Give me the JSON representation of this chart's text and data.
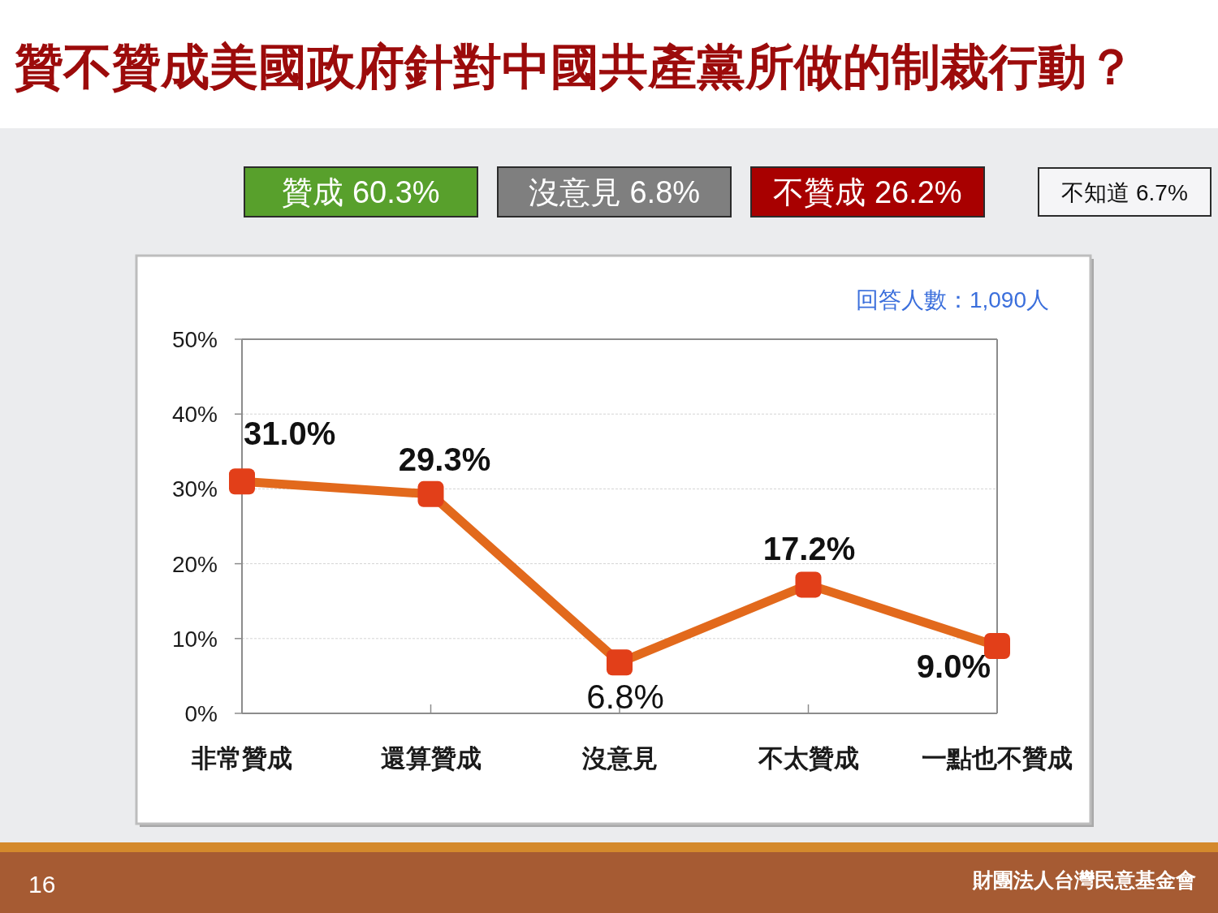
{
  "chart_data": {
    "type": "line",
    "title": "贊不贊成美國政府針對中國共產黨所做的制裁行動？",
    "categories": [
      "非常贊成",
      "還算贊成",
      "沒意見",
      "不太贊成",
      "一點也不贊成"
    ],
    "values": [
      31.0,
      29.3,
      6.8,
      17.2,
      9.0
    ],
    "color": "#e2691c",
    "value_labels": [
      "31.0%",
      "29.3%",
      "6.8%",
      "17.2%",
      "9.0%"
    ],
    "ylim": [
      0,
      50
    ],
    "yticks": [
      {
        "value": 0,
        "label": "0%"
      },
      {
        "value": 10,
        "label": "10%"
      },
      {
        "value": 20,
        "label": "20%"
      },
      {
        "value": 30,
        "label": "30%"
      },
      {
        "value": 40,
        "label": "40%"
      },
      {
        "value": 50,
        "label": "50%"
      }
    ],
    "grid": "y",
    "marker": "square",
    "line_style": "solid",
    "annotations": [
      "贊成 60.3%",
      "沒意見 6.8%",
      "不贊成 26.2%",
      "不知道 6.7%",
      "回答人數：1,090人",
      "16",
      "財團法人台灣民意基金會"
    ]
  }
}
